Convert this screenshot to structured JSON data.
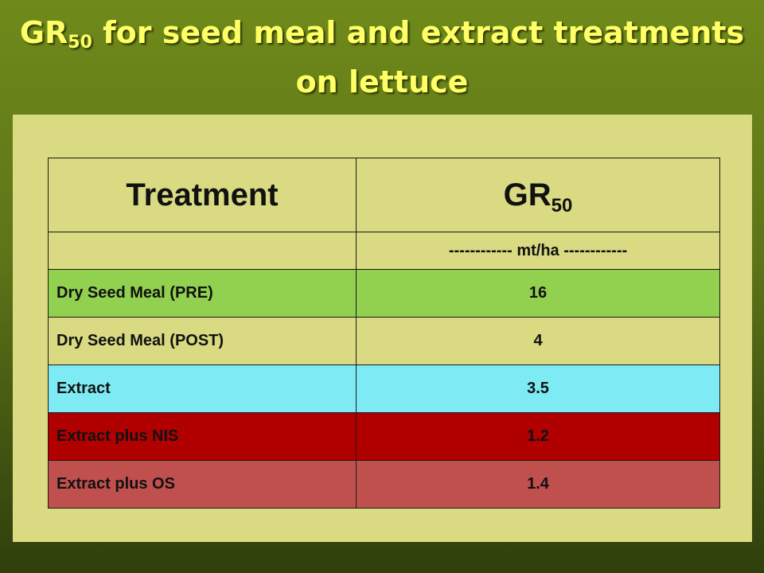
{
  "title": {
    "line1_prefix": "GR",
    "line1_sub": "50",
    "line1_rest": " for seed meal and extract treatments",
    "line2": "on lettuce"
  },
  "table": {
    "headers": {
      "treatment": "Treatment",
      "gr_prefix": "GR",
      "gr_sub": "50"
    },
    "unit_row": "------------ mt/ha ------------",
    "rows": [
      {
        "treatment": "Dry Seed Meal (PRE)",
        "gr50": "16",
        "color": "#92d050"
      },
      {
        "treatment": "Dry Seed Meal (POST)",
        "gr50": "4",
        "color": "#d9da82"
      },
      {
        "treatment": "Extract",
        "gr50": "3.5",
        "color": "#7eeaf3"
      },
      {
        "treatment": "Extract plus NIS",
        "gr50": "1.2",
        "color": "#b00000"
      },
      {
        "treatment": "Extract plus OS",
        "gr50": "1.4",
        "color": "#c0504d"
      }
    ]
  }
}
